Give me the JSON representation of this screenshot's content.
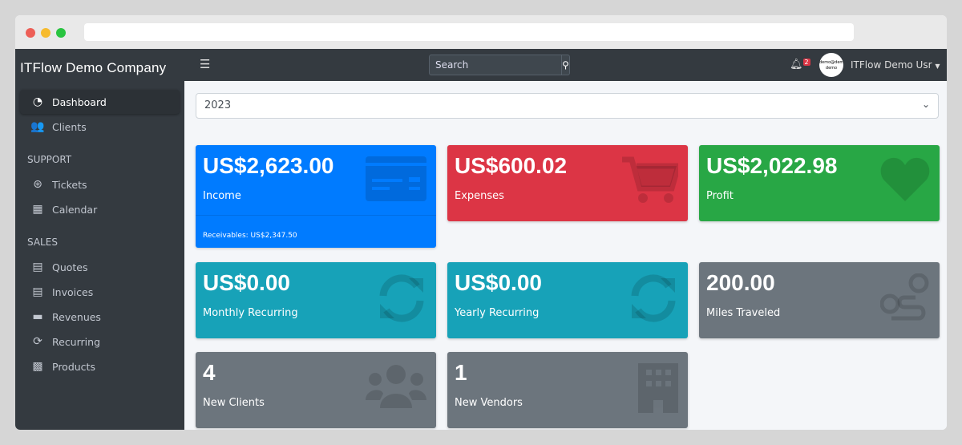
{
  "window": {
    "dots": [
      "#ed5f57",
      "#f6bb2f",
      "#29c440"
    ]
  },
  "sidebar": {
    "brand": "ITFlow Demo Company",
    "items": [
      {
        "label": "Dashboard",
        "icon": "tachometer-icon",
        "active": true
      },
      {
        "label": "Clients",
        "icon": "users-icon"
      }
    ],
    "sections": [
      {
        "header": "SUPPORT",
        "items": [
          {
            "label": "Tickets",
            "icon": "life-ring-icon"
          },
          {
            "label": "Calendar",
            "icon": "calendar-icon"
          }
        ]
      },
      {
        "header": "SALES",
        "items": [
          {
            "label": "Quotes",
            "icon": "file-icon"
          },
          {
            "label": "Invoices",
            "icon": "file-invoice-icon"
          },
          {
            "label": "Revenues",
            "icon": "credit-card-icon"
          },
          {
            "label": "Recurring",
            "icon": "sync-icon"
          },
          {
            "label": "Products",
            "icon": "box-icon"
          }
        ]
      }
    ]
  },
  "topbar": {
    "search_placeholder": "Search",
    "notification_count": "2",
    "avatar_text": "demo@demo demo",
    "user_name": "ITFlow Demo Usr"
  },
  "year_select": {
    "value": "2023"
  },
  "cards": [
    {
      "value": "US$2,623.00",
      "label": "Income",
      "footer": "Receivables: US$2,347.50",
      "color": "#007bff",
      "icon": "credit-card-icon"
    },
    {
      "value": "US$600.02",
      "label": "Expenses",
      "color": "#dc3545",
      "icon": "shopping-cart-icon"
    },
    {
      "value": "US$2,022.98",
      "label": "Profit",
      "color": "#28a745",
      "icon": "heart-icon"
    },
    {
      "value": "US$0.00",
      "label": "Monthly Recurring",
      "color": "#17a2b8",
      "icon": "sync-icon"
    },
    {
      "value": "US$0.00",
      "label": "Yearly Recurring",
      "color": "#17a2b8",
      "icon": "sync-icon"
    },
    {
      "value": "200.00",
      "label": "Miles Traveled",
      "color": "#6c757d",
      "icon": "route-icon"
    },
    {
      "value": "4",
      "label": "New Clients",
      "color": "#6c757d",
      "icon": "users-icon"
    },
    {
      "value": "1",
      "label": "New Vendors",
      "color": "#6c757d",
      "icon": "building-icon"
    }
  ]
}
